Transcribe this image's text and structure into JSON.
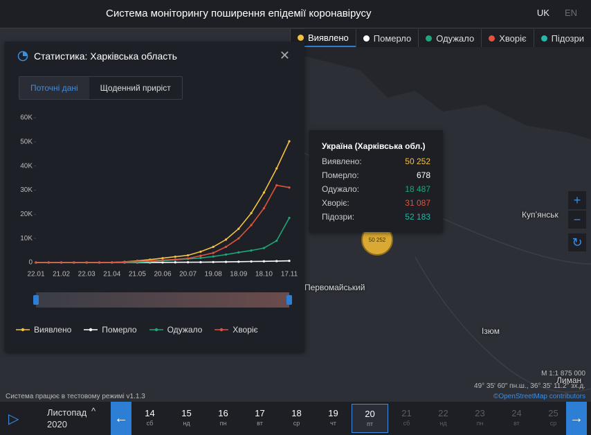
{
  "header": {
    "title": "Система моніторингу поширення епідемії коронавірусу",
    "languages": [
      "UK",
      "EN"
    ]
  },
  "map_filters": [
    {
      "label": "Виявлено",
      "color": "#f5c242"
    },
    {
      "label": "Померло",
      "color": "#ffffff"
    },
    {
      "label": "Одужало",
      "color": "#1fa67a"
    },
    {
      "label": "Хворіє",
      "color": "#e0533d"
    },
    {
      "label": "Підозри",
      "color": "#26b8a5"
    }
  ],
  "panel": {
    "title": "Статистика: Харківська область",
    "close": "✕",
    "tabs": [
      "Поточні дані",
      "Щоденний приріст"
    ]
  },
  "chart_data": {
    "type": "line",
    "categories": [
      "22.01",
      null,
      "21.02",
      null,
      "22.03",
      null,
      "21.04",
      null,
      "21.05",
      null,
      "20.06",
      null,
      "20.07",
      null,
      "19.08",
      null,
      "18.09",
      null,
      "18.10",
      null,
      "17.11"
    ],
    "series": [
      {
        "name": "Виявлено",
        "color": "#f5c242",
        "values": [
          0,
          0,
          0,
          0,
          5,
          20,
          50,
          300,
          700,
          1200,
          1800,
          2400,
          3000,
          4500,
          6500,
          9500,
          14000,
          20500,
          29000,
          39000,
          50252
        ]
      },
      {
        "name": "Померло",
        "color": "#ffffff",
        "values": [
          0,
          0,
          0,
          0,
          0,
          0,
          1,
          5,
          20,
          35,
          50,
          80,
          110,
          150,
          200,
          260,
          340,
          420,
          500,
          590,
          678
        ]
      },
      {
        "name": "Одужало",
        "color": "#1fa67a",
        "values": [
          0,
          0,
          0,
          0,
          0,
          2,
          5,
          30,
          150,
          400,
          700,
          1100,
          1500,
          1900,
          2500,
          3300,
          4200,
          5000,
          6000,
          9000,
          18487
        ]
      },
      {
        "name": "Хворіє",
        "color": "#e0533d",
        "values": [
          0,
          0,
          0,
          0,
          5,
          15,
          40,
          250,
          500,
          700,
          1000,
          1300,
          1700,
          2800,
          4000,
          6500,
          10000,
          15500,
          22500,
          32000,
          31087
        ]
      }
    ],
    "ylim": [
      0,
      60000
    ],
    "yticks": [
      0,
      {
        "value": 10000,
        "label": "10K"
      },
      {
        "value": 20000,
        "label": "20K"
      },
      {
        "value": 30000,
        "label": "30K"
      },
      {
        "value": 40000,
        "label": "40K"
      },
      {
        "value": 50000,
        "label": "50K"
      },
      {
        "value": 60000,
        "label": "60K"
      }
    ],
    "grid": false
  },
  "tooltip": {
    "title": "Україна (Харківська обл.)",
    "rows": [
      {
        "label": "Виявлено:",
        "value": "50 252",
        "color": "#f5c242"
      },
      {
        "label": "Померло:",
        "value": "678",
        "color": "#ffffff"
      },
      {
        "label": "Одужало:",
        "value": "18 487",
        "color": "#1fa67a"
      },
      {
        "label": "Хворіє:",
        "value": "31 087",
        "color": "#e0533d"
      },
      {
        "label": "Підозри:",
        "value": "52 183",
        "color": "#26b8a5"
      }
    ]
  },
  "map": {
    "cluster": "50 252",
    "places": [
      "Первомайський",
      "Купʼянськ",
      "Ізюм",
      "Лиман"
    ],
    "scale": "M 1:1 875 000",
    "coords": "49° 35' 60\" пн.ш., 36° 35' 11.2\" зх.д.",
    "attribution": "©OpenStreetMap contributors",
    "status": "Система працює в тестовому режимі v1.1.3"
  },
  "timeline": {
    "month": "Листопад",
    "year": "2020",
    "selected": 6,
    "days": [
      {
        "day": "14",
        "weekday": "сб"
      },
      {
        "day": "15",
        "weekday": "нд"
      },
      {
        "day": "16",
        "weekday": "пн"
      },
      {
        "day": "17",
        "weekday": "вт"
      },
      {
        "day": "18",
        "weekday": "ср"
      },
      {
        "day": "19",
        "weekday": "чт"
      },
      {
        "day": "20",
        "weekday": "пт"
      },
      {
        "day": "21",
        "weekday": "сб"
      },
      {
        "day": "22",
        "weekday": "нд"
      },
      {
        "day": "23",
        "weekday": "пн"
      },
      {
        "day": "24",
        "weekday": "вт"
      },
      {
        "day": "25",
        "weekday": "ср"
      }
    ]
  }
}
